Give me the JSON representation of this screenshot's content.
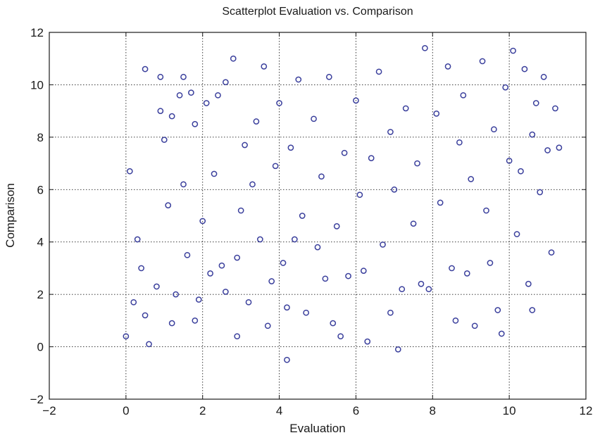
{
  "chart_data": {
    "type": "scatter",
    "title": "Scatterplot Evaluation vs. Comparison",
    "xlabel": "Evaluation",
    "ylabel": "Comparison",
    "xlim": [
      -2,
      12
    ],
    "ylim": [
      -2,
      12
    ],
    "xticks": [
      "−2",
      "0",
      "2",
      "4",
      "6",
      "8",
      "10",
      "12"
    ],
    "yticks": [
      "12",
      "10",
      "8",
      "6",
      "4",
      "2",
      "0",
      "−2"
    ],
    "grid": true,
    "marker": "open-circle",
    "marker_color": "#3a3f9c",
    "series": [
      {
        "x": [
          0.0,
          0.1,
          0.2,
          0.3,
          0.5,
          0.5,
          0.6,
          0.8,
          0.9,
          0.9,
          1.0,
          1.1,
          1.2,
          1.3,
          1.4,
          1.5,
          1.5,
          1.6,
          1.7,
          1.8,
          1.8,
          2.0,
          2.1,
          2.2,
          2.3,
          2.4,
          2.5,
          2.6,
          2.8,
          2.9,
          3.0,
          3.1,
          3.2,
          3.4,
          3.5,
          3.6,
          3.8,
          3.9,
          4.0,
          4.1,
          4.2,
          4.3,
          4.5,
          4.6,
          4.7,
          4.9,
          5.0,
          5.1,
          5.3,
          5.4,
          5.5,
          5.7,
          5.8,
          6.0,
          6.1,
          6.3,
          6.4,
          6.6,
          6.7,
          6.9,
          7.0,
          7.1,
          7.3,
          7.5,
          7.6,
          7.8,
          7.9,
          8.1,
          8.2,
          8.4,
          8.5,
          8.7,
          8.8,
          9.0,
          9.1,
          9.3,
          9.4,
          9.6,
          9.7,
          9.9,
          10.0,
          10.1,
          10.2,
          10.3,
          10.4,
          10.5,
          10.6,
          10.7,
          10.8,
          10.9,
          11.0,
          11.1,
          11.2,
          11.3,
          1.2,
          2.6,
          3.3,
          4.2,
          5.6,
          6.9,
          7.2,
          8.6,
          9.8,
          10.6,
          0.4,
          1.9,
          2.9,
          3.7,
          4.4,
          5.2,
          6.2,
          7.7,
          8.9,
          9.5
        ],
        "y": [
          0.4,
          6.7,
          1.7,
          4.1,
          10.6,
          1.2,
          0.1,
          2.3,
          10.3,
          9.0,
          7.9,
          5.4,
          8.8,
          2.0,
          9.6,
          6.2,
          10.3,
          3.5,
          9.7,
          8.5,
          1.0,
          4.8,
          9.3,
          2.8,
          6.6,
          9.6,
          3.1,
          10.1,
          11.0,
          0.4,
          5.2,
          7.7,
          1.7,
          8.6,
          4.1,
          10.7,
          2.5,
          6.9,
          9.3,
          3.2,
          -0.5,
          7.6,
          10.2,
          5.0,
          1.3,
          8.7,
          3.8,
          6.5,
          10.3,
          0.9,
          4.6,
          7.4,
          2.7,
          9.4,
          5.8,
          0.2,
          7.2,
          10.5,
          3.9,
          8.2,
          6.0,
          -0.1,
          9.1,
          4.7,
          7.0,
          11.4,
          2.2,
          8.9,
          5.5,
          10.7,
          3.0,
          7.8,
          9.6,
          6.4,
          0.8,
          10.9,
          5.2,
          8.3,
          1.4,
          9.9,
          7.1,
          11.3,
          4.3,
          6.7,
          10.6,
          2.4,
          8.1,
          9.3,
          5.9,
          10.3,
          7.5,
          3.6,
          9.1,
          7.6,
          0.9,
          2.1,
          6.2,
          1.5,
          0.4,
          1.3,
          2.2,
          1.0,
          0.5,
          1.4,
          3.0,
          1.8,
          3.4,
          0.8,
          4.1,
          2.6,
          2.9,
          2.4,
          2.8,
          3.2
        ]
      }
    ]
  }
}
